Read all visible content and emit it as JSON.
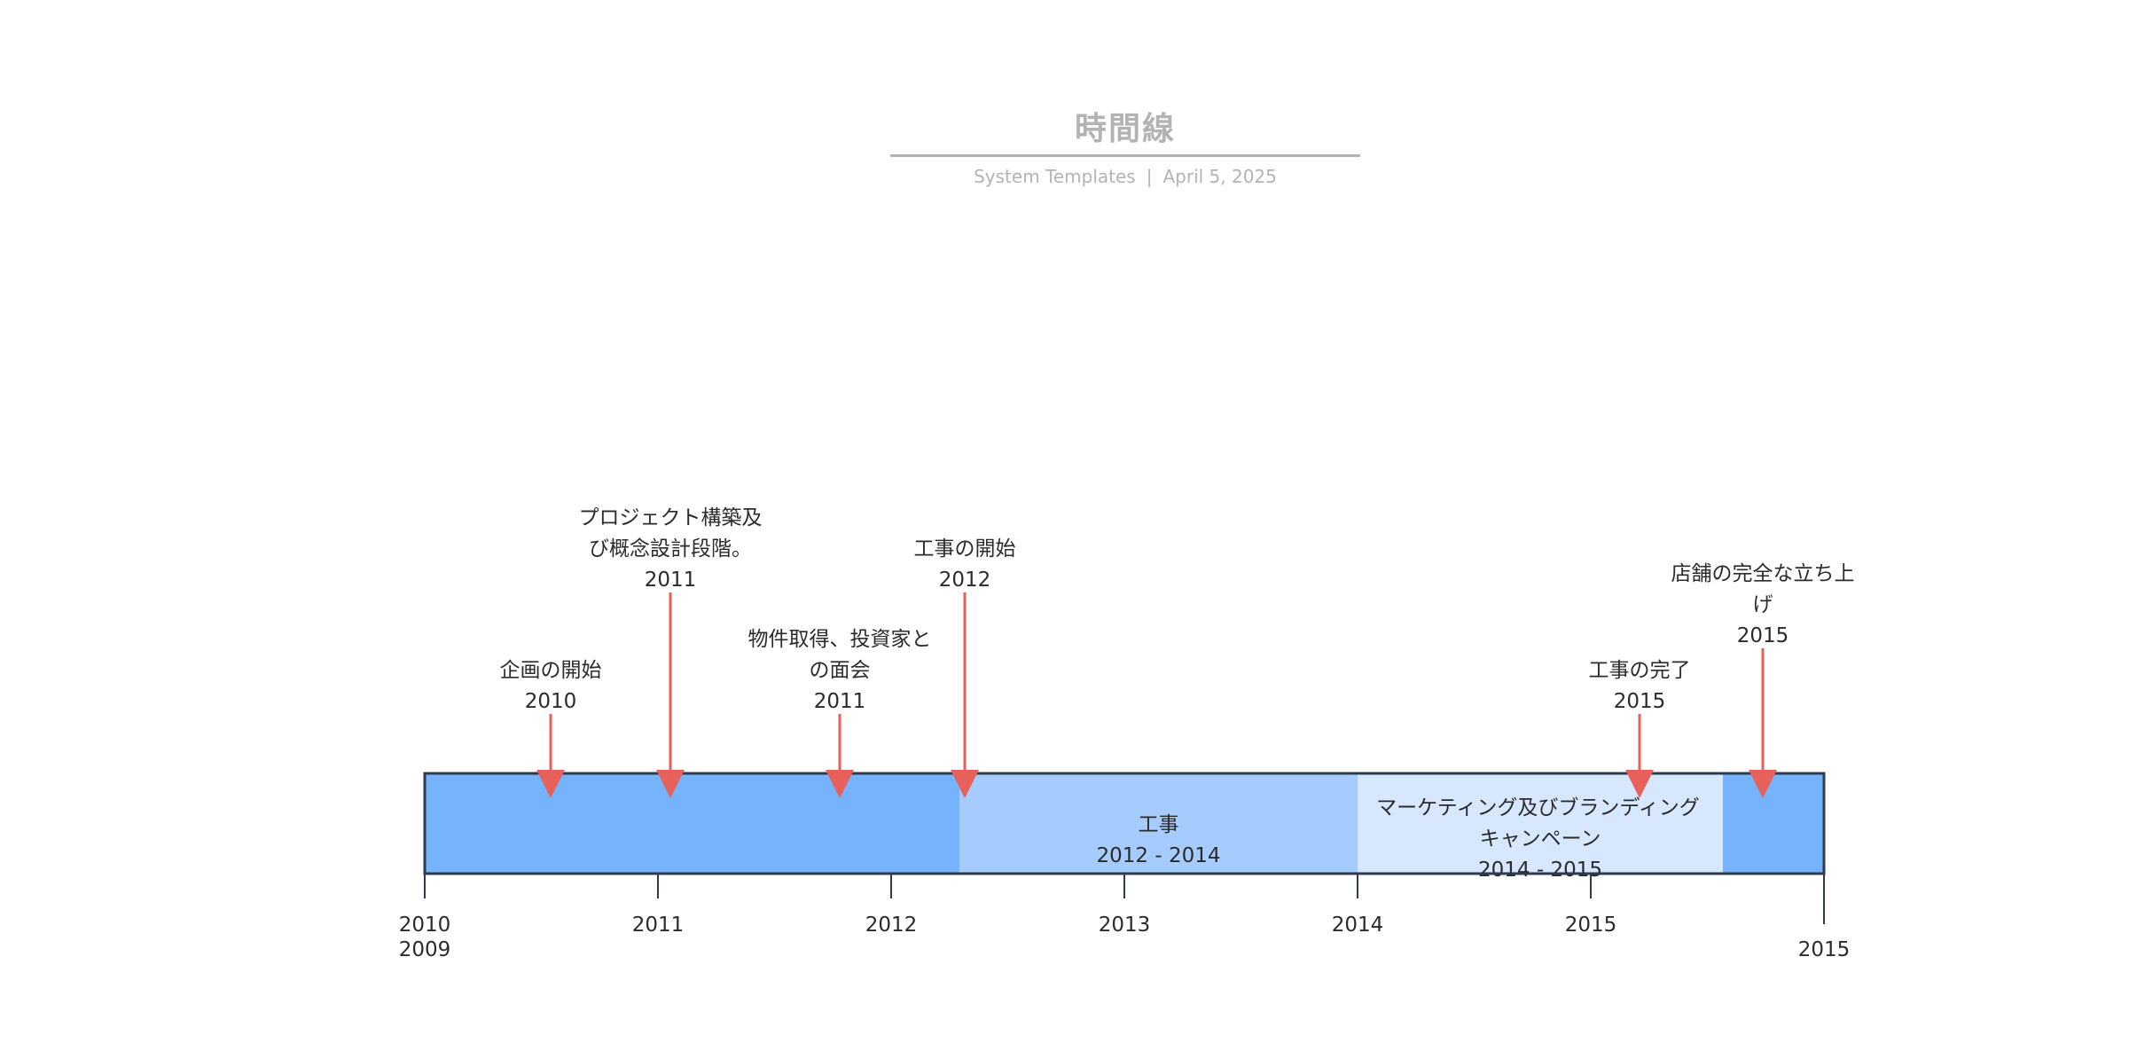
{
  "header": {
    "title": "時間線",
    "source": "System Templates",
    "date": "April 5, 2025"
  },
  "timeline": {
    "start_year": 2009,
    "end_year": 2015,
    "axis_labels": [
      {
        "text": "2010",
        "row": 1,
        "tick": true
      },
      {
        "text": "2009",
        "row": 2,
        "tick": false
      },
      {
        "text": "2011",
        "row": 1,
        "tick": true
      },
      {
        "text": "2012",
        "row": 1,
        "tick": true
      },
      {
        "text": "2013",
        "row": 1,
        "tick": true
      },
      {
        "text": "2014",
        "row": 1,
        "tick": true
      },
      {
        "text": "2015",
        "row": 1,
        "tick": true
      },
      {
        "text": "2015",
        "row": 2,
        "tick": true
      }
    ],
    "periods": [
      {
        "label": "工事",
        "range": "2012 - 2014"
      },
      {
        "label": "マーケティング及びブランディング キャンペーン",
        "range": "2014 - 2015"
      }
    ],
    "milestones": [
      {
        "label": "企画の開始",
        "year": "2010"
      },
      {
        "label": "プロジェクト構築及 び概念設計段階。",
        "year": "2011"
      },
      {
        "label": "物件取得、投資家と の面会",
        "year": "2011"
      },
      {
        "label": "工事の開始",
        "year": "2012"
      },
      {
        "label": "工事の完了",
        "year": "2015"
      },
      {
        "label": "店舗の完全な立ち上 げ",
        "year": "2015"
      }
    ],
    "colors": {
      "bar": "#76b3fd",
      "period_construction": "#a6ccfd",
      "period_marketing": "#d6e7fe",
      "marker": "#e8605a",
      "axis": "#2e3b4e"
    }
  }
}
